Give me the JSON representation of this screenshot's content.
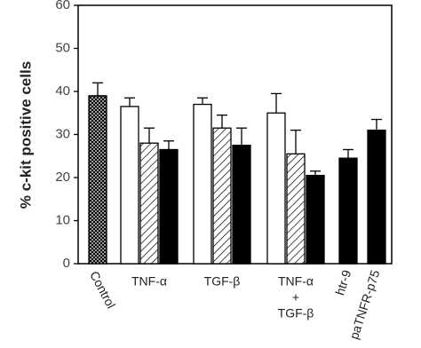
{
  "chart_data": {
    "type": "bar",
    "y_label": "% c-kit positive cells",
    "categories": [
      [
        "Control"
      ],
      [
        "TNF-α"
      ],
      [
        "TGF-β"
      ],
      [
        "TNF-α",
        "+",
        "TGF-β"
      ],
      [
        "htr-9"
      ],
      [
        "paTNFR-p75"
      ]
    ],
    "series": [
      {
        "color": "#000000",
        "pattern": "crosshatch",
        "values": [
          39,
          null,
          null,
          null,
          null,
          null
        ],
        "errors": [
          3,
          null,
          null,
          null,
          null,
          null
        ]
      },
      {
        "color": "#ffffff",
        "pattern": "solid",
        "values": [
          null,
          36.5,
          37,
          35,
          null,
          null
        ],
        "errors": [
          null,
          2,
          1.5,
          4.5,
          null,
          null
        ]
      },
      {
        "color": "#000000",
        "pattern": "hatch",
        "values": [
          null,
          28,
          31.5,
          25.5,
          null,
          null
        ],
        "errors": [
          null,
          3.5,
          3,
          5.5,
          null,
          null
        ]
      },
      {
        "color": "#000000",
        "pattern": "solid",
        "values": [
          null,
          26.5,
          27.5,
          20.5,
          24.5,
          31
        ],
        "errors": [
          null,
          2,
          4,
          1,
          2,
          2.5
        ]
      }
    ],
    "ylim": [
      0,
      60
    ],
    "yticks": [
      0,
      10,
      20,
      30,
      40,
      50,
      60
    ],
    "grid": false
  }
}
